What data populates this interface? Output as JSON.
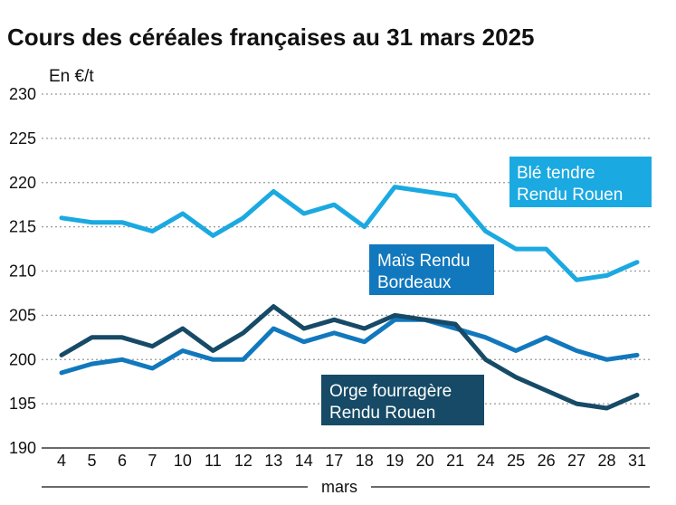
{
  "chart_data": {
    "type": "line",
    "title": "Cours des céréales françaises au 31 mars 2025",
    "ylabel": "En €/t",
    "xlabel": "mars",
    "ylim": [
      190,
      230
    ],
    "yticks": [
      190,
      195,
      200,
      205,
      210,
      215,
      220,
      225,
      230
    ],
    "categories": [
      "4",
      "5",
      "6",
      "7",
      "10",
      "11",
      "12",
      "13",
      "14",
      "17",
      "18",
      "19",
      "20",
      "21",
      "24",
      "25",
      "26",
      "27",
      "28",
      "31"
    ],
    "grid": true,
    "series": [
      {
        "name": "Blé tendre Rendu Rouen",
        "label_lines": [
          "Blé tendre",
          "Rendu Rouen"
        ],
        "color": "#1ba9e1",
        "values": [
          216,
          215.5,
          215.5,
          214.5,
          216.5,
          214,
          216,
          219,
          216.5,
          217.5,
          215,
          219.5,
          219,
          218.5,
          214.5,
          212.5,
          212.5,
          209,
          209.5,
          211
        ]
      },
      {
        "name": "Maïs Rendu Bordeaux",
        "label_lines": [
          "Maïs Rendu",
          "Bordeaux"
        ],
        "color": "#1278bd",
        "values": [
          198.5,
          199.5,
          200,
          199,
          201,
          200,
          200,
          203.5,
          202,
          203,
          202,
          204.5,
          204.5,
          203.5,
          202.5,
          201,
          202.5,
          201,
          200,
          200.5
        ]
      },
      {
        "name": "Orge fourragère Rendu Rouen",
        "label_lines": [
          "Orge fourragère",
          "Rendu Rouen"
        ],
        "color": "#164a66",
        "values": [
          200.5,
          202.5,
          202.5,
          201.5,
          203.5,
          201,
          203,
          206,
          203.5,
          204.5,
          203.5,
          205,
          204.5,
          204,
          200,
          198,
          196.5,
          195,
          194.5,
          196
        ]
      }
    ]
  }
}
